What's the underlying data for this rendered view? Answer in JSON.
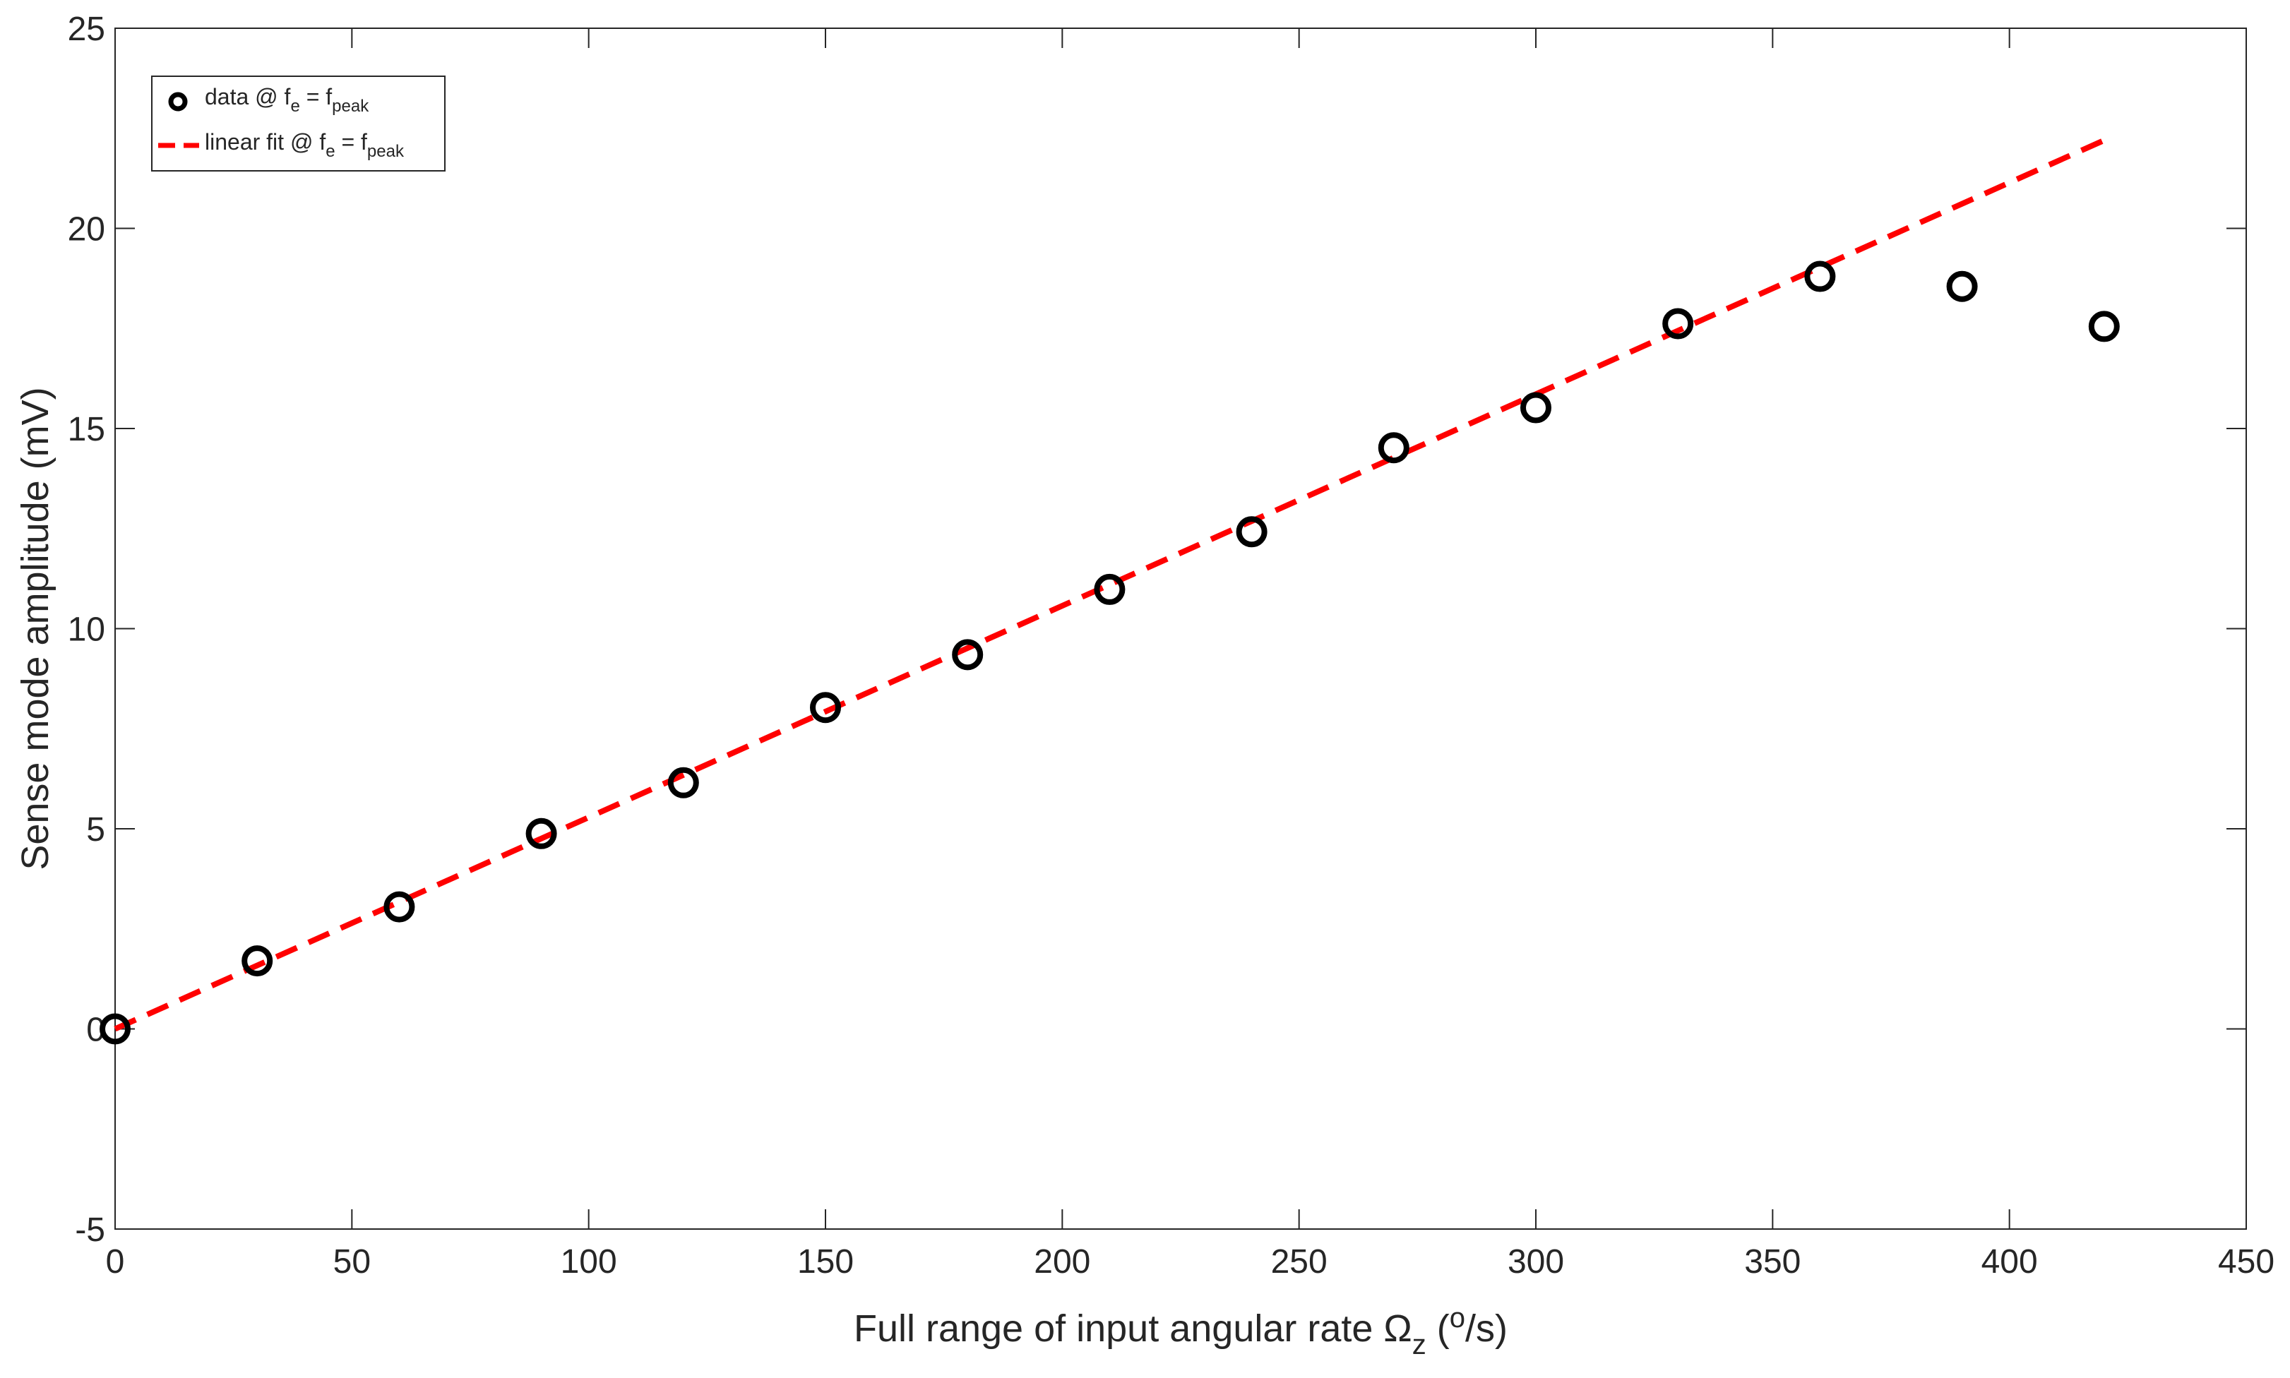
{
  "chart_data": {
    "type": "scatter",
    "xlim": [
      0,
      450
    ],
    "ylim": [
      -5,
      25
    ],
    "xticks": [
      0,
      50,
      100,
      150,
      200,
      250,
      300,
      350,
      400,
      450
    ],
    "yticks": [
      -5,
      0,
      5,
      10,
      15,
      20,
      25
    ],
    "xlabel": {
      "main": "Full range of input angular rate Ω",
      "subscript": "z",
      "open": " (",
      "superscript": "o",
      "close": "/s)"
    },
    "ylabel": "Sense mode amplitude (mV)",
    "grid": false,
    "legend_position": "top-left",
    "series": [
      {
        "name": "data @ f_e = f_peak",
        "legend": {
          "pre": "data @ f",
          "sub1": "e",
          "mid": " = f",
          "sub2": "peak"
        },
        "style": "markers",
        "marker": "circle",
        "color": "#000000",
        "x": [
          0,
          30,
          60,
          90,
          120,
          150,
          180,
          210,
          240,
          270,
          300,
          330,
          360,
          390,
          420
        ],
        "y": [
          0.0,
          1.7,
          3.05,
          4.88,
          6.15,
          8.03,
          9.35,
          10.98,
          12.42,
          14.52,
          15.52,
          17.62,
          18.8,
          18.55,
          17.55
        ]
      },
      {
        "name": "linear fit @ f_e = f_peak",
        "legend": {
          "pre": "linear fit @ f",
          "sub1": "e",
          "mid": " = f",
          "sub2": "peak"
        },
        "style": "dashed-line",
        "color": "#ff0000",
        "x": [
          0,
          420
        ],
        "y": [
          0.0,
          22.2
        ]
      }
    ]
  }
}
